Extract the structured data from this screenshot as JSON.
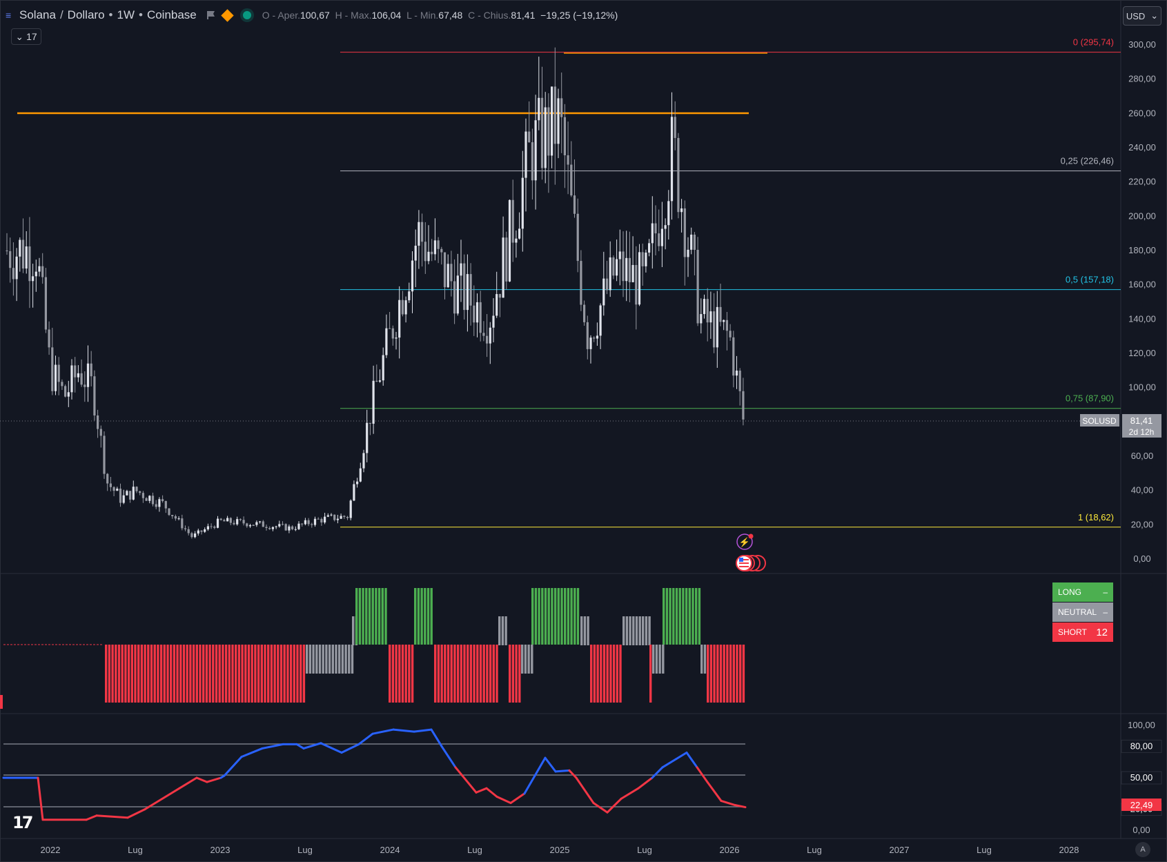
{
  "header": {
    "symbol_name": "Solana",
    "separator": "/",
    "quote_name": "Dollaro",
    "interval": "1W",
    "exchange": "Coinbase",
    "ohlc": {
      "o_label": "O - Aper.",
      "o_value": "100,67",
      "h_label": "H - Max.",
      "h_value": "106,04",
      "l_label": "L - Min.",
      "l_value": "67,48",
      "c_label": "C - Chius.",
      "c_value": "81,41",
      "change": "−19,25 (−19,12%)"
    },
    "collapse_count": "17",
    "currency": "USD",
    "icons": [
      "menu-icon",
      "flag-icon",
      "diamond-icon",
      "market-status-dot"
    ]
  },
  "colors": {
    "background": "#131722",
    "grid_text": "#b2b5be",
    "bull": "#26a69a",
    "bear": "#f23645",
    "candle_up": "#e0e3eb",
    "candle_down": "#9598a1",
    "fib_0": "#f23645",
    "fib_025": "#b2b5be",
    "fib_05": "#22c3e6",
    "fib_075": "#4caf50",
    "fib_1": "#ffeb3b",
    "resistance": "#ff9800",
    "long": "#4caf50",
    "neutral": "#9598a1",
    "short": "#f23645",
    "osc_blue": "#2962ff",
    "osc_red": "#f23645"
  },
  "price_axis": {
    "ticks": [
      "300,00",
      "280,00",
      "260,00",
      "240,00",
      "220,00",
      "200,00",
      "180,00",
      "160,00",
      "140,00",
      "120,00",
      "100,00",
      "60,00",
      "40,00",
      "20,00",
      "0,00"
    ],
    "last_symbol": "SOLUSD",
    "last_price": "81,41",
    "countdown": "2d 12h"
  },
  "fib_levels": [
    {
      "label": "0 (295,74)",
      "value": 295.74
    },
    {
      "label": "0,25 (226,46)",
      "value": 226.46
    },
    {
      "label": "0,5 (157,18)",
      "value": 157.18
    },
    {
      "label": "0,75 (87,90)",
      "value": 87.9
    },
    {
      "label": "1 (18,62)",
      "value": 18.62
    }
  ],
  "time_axis": [
    "2022",
    "Lug",
    "2023",
    "Lug",
    "2024",
    "Lug",
    "2025",
    "Lug",
    "2026",
    "Lug",
    "2027",
    "Lug",
    "2028"
  ],
  "signal_legend": {
    "long_label": "LONG",
    "long_value": "–",
    "neutral_label": "NEUTRAL",
    "neutral_value": "–",
    "short_label": "SHORT",
    "short_value": "12"
  },
  "oscillator": {
    "ticks": [
      "100,00",
      "80,00",
      "50,00",
      "20,00",
      "0,00"
    ],
    "current": "22,49"
  },
  "chart_data": {
    "type": "candlestick",
    "series_name": "SOLUSD",
    "ylim": [
      0,
      300
    ],
    "approx_weekly_close": [
      {
        "x": "2021-12",
        "y": 180
      },
      {
        "x": "2022-01",
        "y": 110
      },
      {
        "x": "2022-02",
        "y": 95
      },
      {
        "x": "2022-03",
        "y": 110
      },
      {
        "x": "2022-04",
        "y": 100
      },
      {
        "x": "2022-05",
        "y": 45
      },
      {
        "x": "2022-06",
        "y": 35
      },
      {
        "x": "2022-07",
        "y": 40
      },
      {
        "x": "2022-09",
        "y": 32
      },
      {
        "x": "2022-11",
        "y": 13
      },
      {
        "x": "2023-01",
        "y": 22
      },
      {
        "x": "2023-03",
        "y": 21
      },
      {
        "x": "2023-06",
        "y": 18
      },
      {
        "x": "2023-08",
        "y": 23
      },
      {
        "x": "2023-10",
        "y": 25
      },
      {
        "x": "2023-12",
        "y": 100
      },
      {
        "x": "2024-03",
        "y": 190
      },
      {
        "x": "2024-05",
        "y": 165
      },
      {
        "x": "2024-08",
        "y": 140
      },
      {
        "x": "2024-11",
        "y": 240
      },
      {
        "x": "2025-01",
        "y": 255
      },
      {
        "x": "2025-03",
        "y": 130
      },
      {
        "x": "2025-05",
        "y": 170
      },
      {
        "x": "2025-07",
        "y": 160
      },
      {
        "x": "2025-09",
        "y": 240
      },
      {
        "x": "2025-11",
        "y": 140
      },
      {
        "x": "2026-01",
        "y": 130
      },
      {
        "x": "2026-02",
        "y": 81.41
      }
    ],
    "resistance_level": 260
  }
}
